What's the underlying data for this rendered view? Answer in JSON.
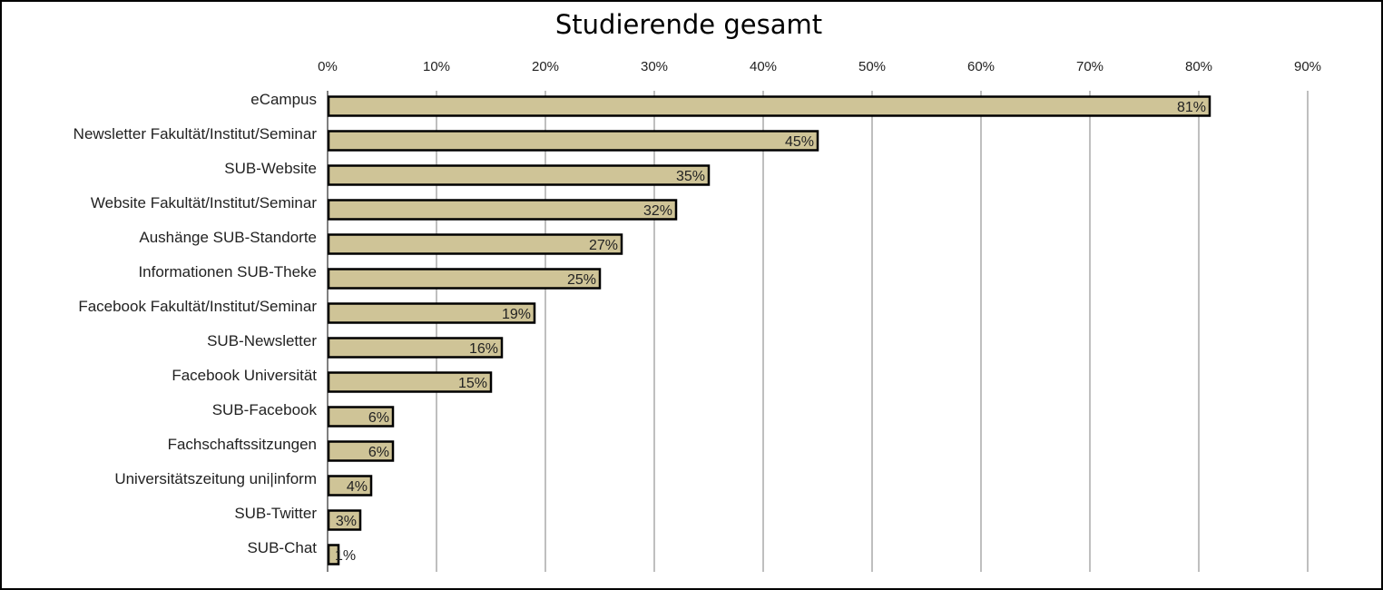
{
  "chart_data": {
    "type": "bar",
    "orientation": "horizontal",
    "title": "Studierende gesamt",
    "categories": [
      "eCampus",
      "Newsletter Fakultät/Institut/Seminar",
      "SUB-Website",
      "Website Fakultät/Institut/Seminar",
      "Aushänge SUB-Standorte",
      "Informationen SUB-Theke",
      "Facebook Fakultät/Institut/Seminar",
      "SUB-Newsletter",
      "Facebook Universität",
      "SUB-Facebook",
      "Fachschaftssitzungen",
      "Universitätszeitung uni|inform",
      "SUB-Twitter",
      "SUB-Chat"
    ],
    "values": [
      81,
      45,
      35,
      32,
      27,
      25,
      19,
      16,
      15,
      6,
      6,
      4,
      3,
      1
    ],
    "value_labels": [
      "81%",
      "45%",
      "35%",
      "32%",
      "27%",
      "25%",
      "19%",
      "16%",
      "15%",
      "6%",
      "6%",
      "4%",
      "3%",
      "1%"
    ],
    "xlim": [
      0,
      90
    ],
    "x_ticks": [
      0,
      10,
      20,
      30,
      40,
      50,
      60,
      70,
      80,
      90
    ],
    "x_tick_labels": [
      "0%",
      "10%",
      "20%",
      "30%",
      "40%",
      "50%",
      "60%",
      "70%",
      "80%",
      "90%"
    ],
    "x_axis_position": "top",
    "grid": "vertical",
    "legend": "none",
    "colors": {
      "bar_fill": "#cfc497",
      "bar_stroke": "#000000",
      "grid": "#7f7f7f"
    }
  }
}
